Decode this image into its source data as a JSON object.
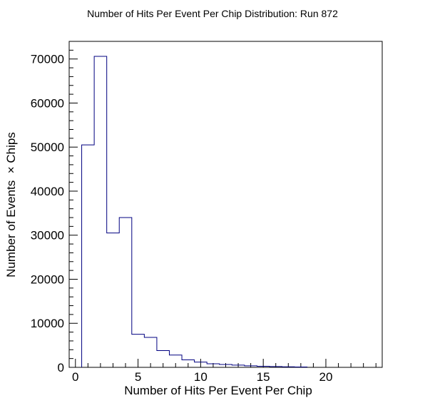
{
  "chart_data": {
    "type": "histogram",
    "title": "Number of Hits Per Event Per Chip Distribution: Run 872",
    "xlabel": "Number of Hits Per Event Per Chip",
    "ylabel": "Number of Events  × Chips",
    "xlim": [
      -0.5,
      24.5
    ],
    "ylim": [
      0,
      74000
    ],
    "x_ticks": [
      0,
      5,
      10,
      15,
      20
    ],
    "x_tick_labels": [
      "0",
      "5",
      "10",
      "15",
      "20"
    ],
    "y_ticks": [
      0,
      10000,
      20000,
      30000,
      40000,
      50000,
      60000,
      70000
    ],
    "y_tick_labels": [
      "0",
      "10000",
      "20000",
      "30000",
      "40000",
      "50000",
      "60000",
      "70000"
    ],
    "bin_edges": [
      0.5,
      1.5,
      2.5,
      3.5,
      4.5,
      5.5,
      6.5,
      7.5,
      8.5,
      9.5,
      10.5,
      11.5,
      12.5,
      13.5,
      14.5,
      15.5,
      16.5,
      17.5,
      18.5
    ],
    "values": [
      50500,
      70600,
      30500,
      34000,
      7500,
      6800,
      3800,
      2800,
      1700,
      1200,
      800,
      650,
      500,
      350,
      250,
      180,
      120,
      80
    ],
    "line_color": "#000080",
    "legend": false,
    "grid": false
  }
}
